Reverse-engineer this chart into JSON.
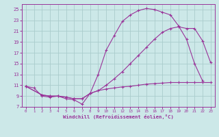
{
  "xlabel": "Windchill (Refroidissement éolien,°C)",
  "bg_color": "#cce8e8",
  "line_color": "#993399",
  "grid_color": "#aacccc",
  "xlim": [
    -0.5,
    23.5
  ],
  "ylim": [
    7,
    26
  ],
  "yticks": [
    7,
    9,
    11,
    13,
    15,
    17,
    19,
    21,
    23,
    25
  ],
  "xticks": [
    0,
    1,
    2,
    3,
    4,
    5,
    6,
    7,
    8,
    9,
    10,
    11,
    12,
    13,
    14,
    15,
    16,
    17,
    18,
    19,
    20,
    21,
    22,
    23
  ],
  "line1_x": [
    0,
    1,
    2,
    3,
    4,
    5,
    6,
    7,
    8,
    9,
    10,
    11,
    12,
    13,
    14,
    15,
    16,
    17,
    18,
    19,
    20,
    21,
    22
  ],
  "line1_y": [
    10.8,
    10.5,
    9.0,
    8.8,
    9.0,
    8.5,
    8.3,
    7.5,
    9.5,
    13.0,
    17.5,
    20.2,
    22.8,
    24.0,
    24.8,
    25.2,
    25.0,
    24.5,
    24.0,
    22.0,
    19.5,
    15.0,
    11.8
  ],
  "line2_x": [
    0,
    2,
    3,
    4,
    5,
    6,
    7,
    8,
    9,
    10,
    11,
    12,
    13,
    14,
    15,
    16,
    17,
    18,
    19,
    20,
    21,
    22,
    23
  ],
  "line2_y": [
    10.8,
    9.2,
    9.0,
    9.0,
    8.8,
    8.5,
    8.5,
    9.5,
    10.0,
    11.0,
    12.2,
    13.5,
    15.0,
    16.5,
    18.0,
    19.5,
    20.8,
    21.5,
    21.8,
    21.5,
    21.5,
    19.2,
    15.2
  ],
  "line3_x": [
    0,
    2,
    3,
    4,
    5,
    6,
    7,
    8,
    9,
    10,
    11,
    12,
    13,
    14,
    15,
    16,
    17,
    18,
    19,
    20,
    21,
    22,
    23
  ],
  "line3_y": [
    10.8,
    9.2,
    9.0,
    9.0,
    8.8,
    8.5,
    8.5,
    9.5,
    10.0,
    10.3,
    10.5,
    10.7,
    10.8,
    11.0,
    11.2,
    11.3,
    11.4,
    11.5,
    11.5,
    11.5,
    11.5,
    11.5,
    11.5
  ]
}
